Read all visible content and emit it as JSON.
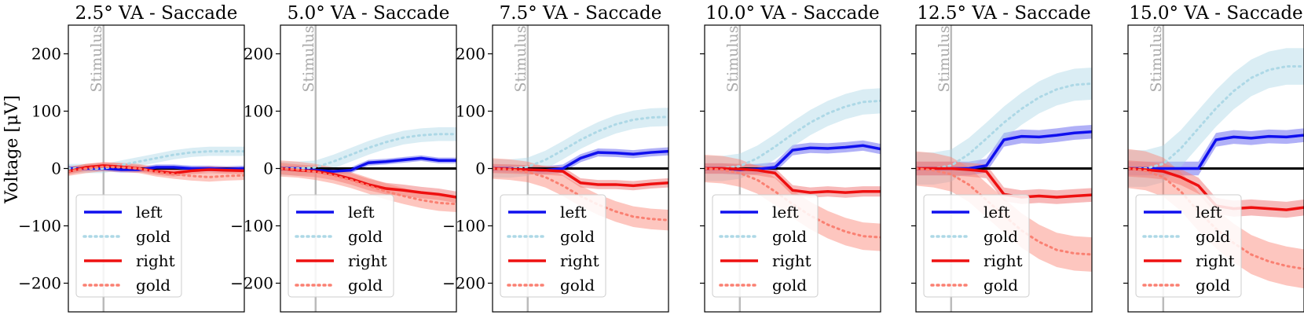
{
  "figure": {
    "ylabel": "Voltage [μV]"
  },
  "legend": {
    "entries": [
      "left",
      "gold",
      "right",
      "gold"
    ],
    "location": "lower-left"
  },
  "colors": {
    "left": "#1010ee",
    "left_band": "#7070f0",
    "gold_left": "#add8e6",
    "right": "#ee1010",
    "right_band": "#f08080",
    "gold_right": "#fa8072",
    "stimulus": "#bbbbbb",
    "zero": "#000000"
  },
  "chart_data": [
    {
      "type": "line",
      "title": "2.5° VA - Saccade",
      "ylim": [
        -250,
        250
      ],
      "yticks": [
        -200,
        -100,
        0,
        100,
        200
      ],
      "show_ytick_labels": true,
      "xlim": [
        0,
        50
      ],
      "stimulus_x": 10,
      "stimulus_label": "Stimulus",
      "x": [
        0,
        5,
        10,
        15,
        20,
        25,
        30,
        35,
        40,
        45,
        50
      ],
      "series": [
        {
          "name": "left",
          "style": "solid",
          "values": [
            0,
            0,
            0,
            -2,
            -2,
            2,
            2,
            0,
            0,
            -1,
            0
          ],
          "band": 5
        },
        {
          "name": "gold",
          "style": "dotted",
          "side": "left",
          "values": [
            0,
            0,
            0,
            6,
            12,
            18,
            24,
            28,
            30,
            30,
            30
          ],
          "band": 8
        },
        {
          "name": "right",
          "style": "solid",
          "values": [
            -5,
            2,
            5,
            3,
            0,
            -5,
            -8,
            -4,
            -2,
            -3,
            -4
          ],
          "band": 6
        },
        {
          "name": "gold",
          "style": "dotted",
          "side": "right",
          "values": [
            -5,
            0,
            3,
            2,
            0,
            -6,
            -10,
            -13,
            -15,
            -13,
            -12
          ],
          "band": 8
        }
      ]
    },
    {
      "type": "line",
      "title": "5.0° VA - Saccade",
      "ylim": [
        -250,
        250
      ],
      "yticks": [
        -200,
        -100,
        0,
        100,
        200
      ],
      "show_ytick_labels": true,
      "xlim": [
        0,
        50
      ],
      "stimulus_x": 10,
      "stimulus_label": "Stimulus",
      "x": [
        0,
        5,
        10,
        15,
        20,
        25,
        30,
        35,
        40,
        45,
        50
      ],
      "series": [
        {
          "name": "left",
          "style": "solid",
          "values": [
            0,
            0,
            -3,
            -5,
            -3,
            10,
            12,
            15,
            18,
            14,
            14
          ],
          "band": 5
        },
        {
          "name": "gold",
          "style": "dotted",
          "side": "left",
          "values": [
            0,
            0,
            2,
            12,
            24,
            36,
            46,
            54,
            58,
            60,
            60
          ],
          "band": 12
        },
        {
          "name": "right",
          "style": "solid",
          "values": [
            0,
            -3,
            -5,
            -10,
            -18,
            -28,
            -35,
            -38,
            -42,
            -45,
            -50
          ],
          "band": 10
        },
        {
          "name": "gold",
          "style": "dotted",
          "side": "right",
          "values": [
            0,
            -2,
            -6,
            -12,
            -20,
            -30,
            -40,
            -48,
            -55,
            -60,
            -62
          ],
          "band": 14
        }
      ]
    },
    {
      "type": "line",
      "title": "7.5° VA - Saccade",
      "ylim": [
        -250,
        250
      ],
      "yticks": [
        -200,
        -100,
        0,
        100,
        200
      ],
      "show_ytick_labels": true,
      "xlim": [
        0,
        50
      ],
      "stimulus_x": 10,
      "stimulus_label": "Stimulus",
      "x": [
        0,
        5,
        10,
        15,
        20,
        25,
        30,
        35,
        40,
        45,
        50
      ],
      "series": [
        {
          "name": "left",
          "style": "solid",
          "values": [
            0,
            0,
            -2,
            -3,
            0,
            18,
            28,
            27,
            25,
            28,
            30
          ],
          "band": 7
        },
        {
          "name": "gold",
          "style": "dotted",
          "side": "left",
          "values": [
            0,
            0,
            3,
            15,
            32,
            50,
            65,
            77,
            85,
            89,
            90
          ],
          "band": 16
        },
        {
          "name": "right",
          "style": "solid",
          "values": [
            0,
            -1,
            -2,
            -3,
            -5,
            -25,
            -28,
            -28,
            -30,
            -27,
            -25
          ],
          "band": 8
        },
        {
          "name": "gold",
          "style": "dotted",
          "side": "right",
          "values": [
            0,
            -2,
            -6,
            -15,
            -30,
            -48,
            -63,
            -75,
            -84,
            -88,
            -90
          ],
          "band": 18
        }
      ]
    },
    {
      "type": "line",
      "title": "10.0° VA - Saccade",
      "ylim": [
        -250,
        250
      ],
      "yticks": [
        -200,
        -100,
        0,
        100,
        200
      ],
      "show_ytick_labels": false,
      "xlim": [
        0,
        50
      ],
      "stimulus_x": 10,
      "stimulus_label": "Stimulus",
      "x": [
        0,
        5,
        10,
        15,
        20,
        25,
        30,
        35,
        40,
        45,
        50
      ],
      "series": [
        {
          "name": "left",
          "style": "solid",
          "values": [
            0,
            0,
            -2,
            -1,
            2,
            32,
            36,
            35,
            37,
            40,
            34
          ],
          "band": 9
        },
        {
          "name": "gold",
          "style": "dotted",
          "side": "left",
          "values": [
            0,
            0,
            4,
            18,
            38,
            60,
            80,
            96,
            108,
            116,
            118
          ],
          "band": 22
        },
        {
          "name": "right",
          "style": "solid",
          "values": [
            0,
            0,
            -1,
            -3,
            -8,
            -38,
            -42,
            -40,
            -42,
            -40,
            -40
          ],
          "band": 9
        },
        {
          "name": "gold",
          "style": "dotted",
          "side": "right",
          "values": [
            0,
            -2,
            -8,
            -20,
            -40,
            -62,
            -82,
            -98,
            -110,
            -118,
            -120
          ],
          "band": 24
        }
      ]
    },
    {
      "type": "line",
      "title": "12.5° VA - Saccade",
      "ylim": [
        -250,
        250
      ],
      "yticks": [
        -200,
        -100,
        0,
        100,
        200
      ],
      "show_ytick_labels": false,
      "xlim": [
        0,
        50
      ],
      "stimulus_x": 10,
      "stimulus_label": "Stimulus",
      "x": [
        0,
        5,
        10,
        15,
        20,
        25,
        30,
        35,
        40,
        45,
        50
      ],
      "series": [
        {
          "name": "left",
          "style": "solid",
          "values": [
            0,
            0,
            0,
            0,
            5,
            50,
            56,
            55,
            58,
            62,
            64
          ],
          "band": 12
        },
        {
          "name": "gold",
          "style": "dotted",
          "side": "left",
          "values": [
            0,
            0,
            5,
            25,
            52,
            80,
            104,
            124,
            138,
            146,
            148
          ],
          "band": 28
        },
        {
          "name": "right",
          "style": "solid",
          "values": [
            0,
            0,
            0,
            -2,
            -5,
            -45,
            -50,
            -48,
            -50,
            -48,
            -46
          ],
          "band": 12
        },
        {
          "name": "gold",
          "style": "dotted",
          "side": "right",
          "values": [
            0,
            -3,
            -10,
            -28,
            -55,
            -82,
            -108,
            -128,
            -142,
            -148,
            -150
          ],
          "band": 30
        }
      ]
    },
    {
      "type": "line",
      "title": "15.0° VA - Saccade",
      "ylim": [
        -250,
        250
      ],
      "yticks": [
        -200,
        -100,
        0,
        100,
        200
      ],
      "show_ytick_labels": false,
      "xlim": [
        0,
        50
      ],
      "stimulus_x": 10,
      "stimulus_label": "Stimulus",
      "x": [
        0,
        5,
        10,
        15,
        20,
        25,
        30,
        35,
        40,
        45,
        50
      ],
      "series": [
        {
          "name": "left",
          "style": "solid",
          "values": [
            0,
            0,
            0,
            0,
            0,
            50,
            55,
            53,
            56,
            55,
            58
          ],
          "band": 12
        },
        {
          "name": "gold",
          "style": "dotted",
          "side": "left",
          "values": [
            0,
            0,
            8,
            35,
            70,
            105,
            135,
            158,
            172,
            178,
            178
          ],
          "band": 32
        },
        {
          "name": "right",
          "style": "solid",
          "values": [
            0,
            -2,
            -5,
            -15,
            -30,
            -65,
            -70,
            -68,
            -70,
            -72,
            -68
          ],
          "band": 14
        },
        {
          "name": "gold",
          "style": "dotted",
          "side": "right",
          "values": [
            0,
            -4,
            -15,
            -40,
            -75,
            -105,
            -130,
            -150,
            -162,
            -170,
            -175
          ],
          "band": 34
        }
      ]
    }
  ]
}
